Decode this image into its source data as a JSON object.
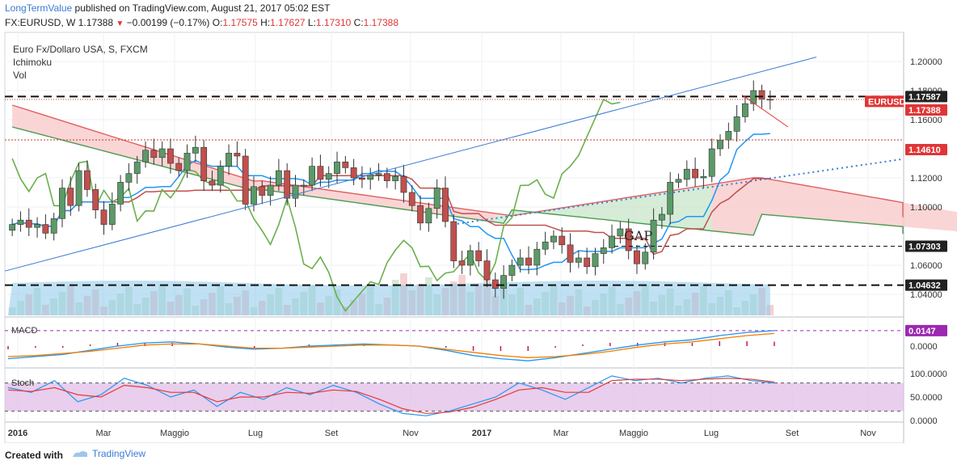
{
  "header": {
    "author": "LongTermValue",
    "published_text": "published on TradingView.com, August 21, 2017 05:02 EST",
    "symbol": "FX:EURUSD, W",
    "last": "1.17388",
    "change": "−0.00199 (−0.17%)",
    "o_label": "O:",
    "o_value": "1.17575",
    "h_label": "H:",
    "h_value": "1.17627",
    "l_label": "L:",
    "l_value": "1.17310",
    "c_label": "C:",
    "c_value": "1.17388"
  },
  "legend": {
    "instrument": "Euro Fx/Dollaro USA, S, FXCM",
    "ichimoku": "Ichimoku",
    "vol": "Vol"
  },
  "footer": {
    "created_with": "Created with",
    "tradingview": "TradingView"
  },
  "annotations": {
    "gap": "GAP"
  },
  "colors": {
    "up": "#5b9a68",
    "down": "#c0504d",
    "cloud_green": "#c8e6c9",
    "cloud_red": "#f8c7c7",
    "trend_blue": "#3b7bd4",
    "kijun": "#c0504d",
    "tenkan": "#2196f3",
    "chikou": "#6ab04c",
    "price_tag": "#e03535",
    "macd_line": "#2196f3",
    "signal_line": "#f57c00",
    "stoch_bg": "#e1bee7"
  },
  "chart_data": [
    {
      "type": "candlestick",
      "title": "Euro Fx/Dollaro USA, S, FXCM",
      "interval": "weekly",
      "ylim": [
        1.03,
        1.21
      ],
      "y_ticks": [
        "1.20000",
        "1.18000",
        "1.16000",
        "1.12000",
        "1.10000",
        "1.06000",
        "1.04000"
      ],
      "x_ticks": [
        "2016",
        "Mar",
        "Maggio",
        "Lug",
        "Set",
        "Nov",
        "2017",
        "Mar",
        "Maggio",
        "Lug",
        "Set",
        "Nov"
      ],
      "price_tags": [
        {
          "label": "1.17587",
          "style": "dark"
        },
        {
          "label": "EURUSD",
          "style": "red"
        },
        {
          "label": "1.17388",
          "style": "red"
        },
        {
          "label": "1.14610",
          "style": "red"
        },
        {
          "label": "1.07303",
          "style": "dark"
        },
        {
          "label": "1.04632",
          "style": "dark"
        }
      ],
      "horizontal_levels": [
        {
          "value": 1.17587,
          "style": "dashed"
        },
        {
          "value": 1.1461,
          "style": "dotted-red"
        },
        {
          "value": 1.07303,
          "style": "dashed-thin"
        },
        {
          "value": 1.04632,
          "style": "dashed"
        }
      ],
      "candles_close": [
        1.088,
        1.091,
        1.086,
        1.088,
        1.082,
        1.092,
        1.113,
        1.101,
        1.125,
        1.112,
        1.098,
        1.088,
        1.102,
        1.117,
        1.123,
        1.131,
        1.139,
        1.134,
        1.14,
        1.13,
        1.125,
        1.137,
        1.141,
        1.118,
        1.115,
        1.128,
        1.137,
        1.135,
        1.102,
        1.114,
        1.108,
        1.115,
        1.125,
        1.106,
        1.115,
        1.115,
        1.128,
        1.119,
        1.123,
        1.131,
        1.127,
        1.12,
        1.119,
        1.122,
        1.123,
        1.118,
        1.121,
        1.11,
        1.101,
        1.089,
        1.099,
        1.113,
        1.09,
        1.063,
        1.06,
        1.07,
        1.063,
        1.05,
        1.044,
        1.053,
        1.06,
        1.065,
        1.06,
        1.071,
        1.076,
        1.08,
        1.074,
        1.062,
        1.065,
        1.059,
        1.068,
        1.072,
        1.08,
        1.085,
        1.07,
        1.061,
        1.069,
        1.091,
        1.095,
        1.117,
        1.119,
        1.126,
        1.12,
        1.121,
        1.14,
        1.146,
        1.152,
        1.162,
        1.171,
        1.18,
        1.174,
        1.1739
      ],
      "chikou_span": {
        "series": "lagging close, plotted 26 periods back"
      },
      "ichimoku": {
        "tenkan": "blue",
        "kijun": "red",
        "cloud": "green/red"
      }
    },
    {
      "type": "line",
      "title": "MACD",
      "value_label": "0.0147",
      "y_ticks": [
        "0.0000"
      ],
      "series": [
        {
          "name": "MACD",
          "values": [
            -0.012,
            -0.01,
            -0.008,
            -0.004,
            0.0,
            0.003,
            0.004,
            0.002,
            -0.001,
            -0.003,
            -0.002,
            0.0,
            0.001,
            0.002,
            0.001,
            0.0,
            -0.004,
            -0.009,
            -0.012,
            -0.014,
            -0.011,
            -0.007,
            -0.003,
            0.001,
            0.004,
            0.006,
            0.01,
            0.013,
            0.0147
          ]
        },
        {
          "name": "Signal",
          "values": [
            -0.01,
            -0.009,
            -0.007,
            -0.005,
            -0.002,
            0.001,
            0.002,
            0.002,
            0.0,
            -0.002,
            -0.002,
            -0.001,
            0.0,
            0.001,
            0.001,
            0.0,
            -0.003,
            -0.006,
            -0.009,
            -0.011,
            -0.01,
            -0.008,
            -0.005,
            -0.001,
            0.002,
            0.004,
            0.007,
            0.01,
            0.012
          ]
        }
      ]
    },
    {
      "type": "line",
      "title": "Stoch",
      "y_ticks": [
        "100.0000",
        "50.0000",
        "0.0000"
      ],
      "bands": [
        20,
        80
      ],
      "series": [
        {
          "name": "%K",
          "values": [
            70,
            60,
            85,
            40,
            55,
            90,
            75,
            50,
            65,
            30,
            60,
            45,
            70,
            55,
            75,
            60,
            35,
            15,
            10,
            20,
            35,
            50,
            80,
            65,
            45,
            70,
            95,
            85,
            90,
            80,
            90,
            95,
            85,
            80
          ]
        },
        {
          "name": "%D",
          "values": [
            65,
            62,
            70,
            55,
            50,
            75,
            70,
            60,
            60,
            40,
            50,
            50,
            60,
            58,
            65,
            62,
            45,
            25,
            15,
            18,
            28,
            45,
            65,
            70,
            60,
            60,
            85,
            88,
            88,
            85,
            88,
            90,
            88,
            82
          ]
        }
      ]
    }
  ]
}
